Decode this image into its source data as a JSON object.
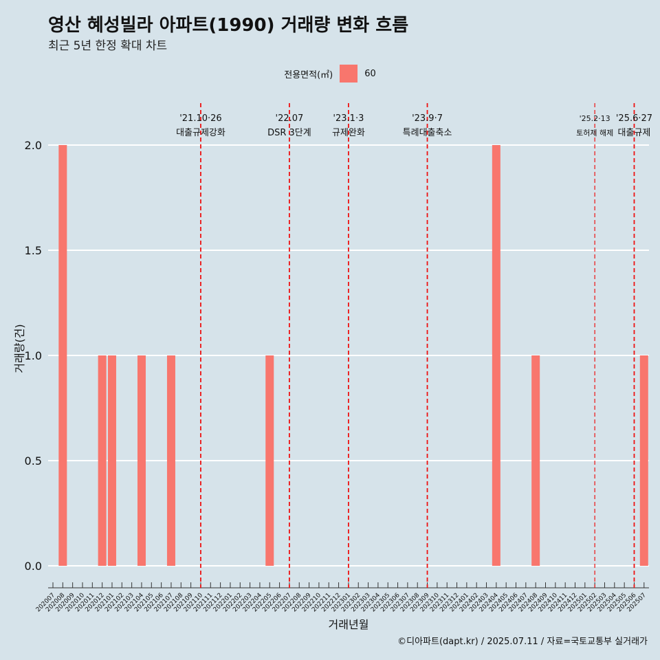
{
  "title": "영산 혜성빌라 아파트(1990) 거래량 변화 흐름",
  "subtitle": "최근 5년 한정 확대 차트",
  "legend": {
    "title": "전용면적(㎡)",
    "items": [
      {
        "label": "60",
        "color": "#f8766d"
      }
    ]
  },
  "footer": "©디아파트(dapt.kr) / 2025.07.11 / 자료=국토교통부 실거래가",
  "chart_data": {
    "type": "bar",
    "xlabel": "거래년월",
    "ylabel": "거래량(건)",
    "ylim": [
      0,
      2
    ],
    "yticks": [
      "0.0",
      "0.5",
      "1.0",
      "1.5",
      "2.0"
    ],
    "grid": true,
    "legend_position": "top",
    "categories": [
      "202007",
      "202008",
      "202009",
      "202010",
      "202011",
      "202012",
      "202101",
      "202102",
      "202103",
      "202104",
      "202105",
      "202106",
      "202107",
      "202108",
      "202109",
      "202110",
      "202111",
      "202112",
      "202201",
      "202202",
      "202203",
      "202204",
      "202205",
      "202206",
      "202207",
      "202208",
      "202209",
      "202210",
      "202211",
      "202212",
      "202301",
      "202302",
      "202303",
      "202304",
      "202305",
      "202306",
      "202307",
      "202308",
      "202309",
      "202310",
      "202311",
      "202312",
      "202401",
      "202402",
      "202403",
      "202404",
      "202405",
      "202406",
      "202407",
      "202408",
      "202409",
      "202410",
      "202411",
      "202412",
      "202501",
      "202502",
      "202503",
      "202504",
      "202505",
      "202506",
      "202507"
    ],
    "series": [
      {
        "name": "60",
        "color": "#f8766d",
        "values": [
          0,
          2,
          0,
          0,
          0,
          1,
          1,
          0,
          0,
          1,
          0,
          0,
          1,
          0,
          0,
          0,
          0,
          0,
          0,
          0,
          0,
          0,
          1,
          0,
          0,
          0,
          0,
          0,
          0,
          0,
          0,
          0,
          0,
          0,
          0,
          0,
          0,
          0,
          0,
          0,
          0,
          0,
          0,
          0,
          0,
          2,
          0,
          0,
          0,
          1,
          0,
          0,
          0,
          0,
          0,
          0,
          0,
          0,
          0,
          0,
          1
        ]
      }
    ],
    "annotations": [
      {
        "date": "202110",
        "line1": "'21.10·26",
        "line2": "대출규제강화"
      },
      {
        "date": "202207",
        "line1": "'22.07",
        "line2": "DSR 3단계"
      },
      {
        "date": "202301",
        "line1": "'23.1·3",
        "line2": "규제완화"
      },
      {
        "date": "202309",
        "line1": "'23.9·7",
        "line2": "특례대출축소"
      },
      {
        "date": "202502",
        "line1": "'25.2·13",
        "line2": "토허제 해제"
      },
      {
        "date": "202506",
        "line1": "'25.6·27",
        "line2": "대출규제"
      }
    ]
  }
}
